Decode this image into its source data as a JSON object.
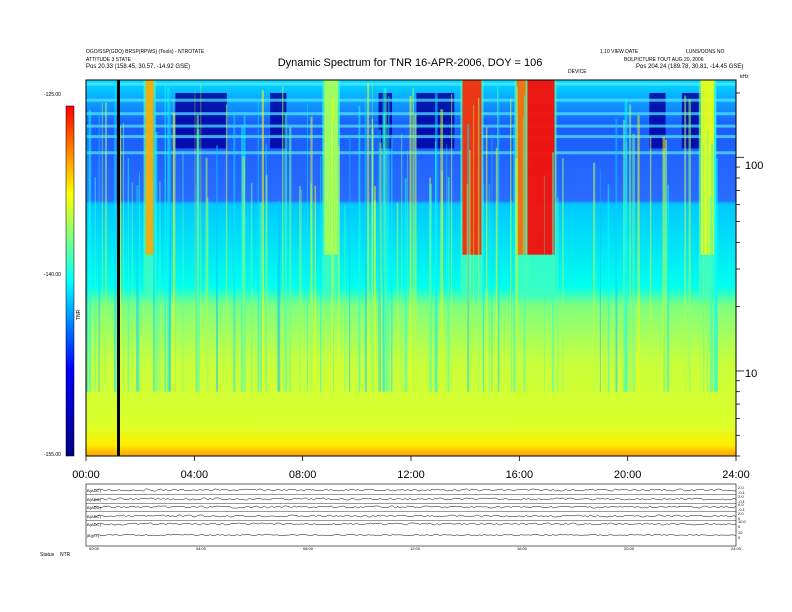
{
  "header": {
    "top_left_line1": "OGO/SSP(GDO) BRSP(RPWS) (Tools) - NTROTATE",
    "top_left_line2": "ATTITUDE 3 STATE",
    "top_left_line3": "Pos   20.33 (158.45, 30.57, -14.92 GSE)",
    "top_right_line1": "1.10 VIEW DATE",
    "top_right_line2": "LUNS/OONS NO",
    "top_right_line3": "BOLPICTURE  TOUT AUG 20, 2006",
    "top_right_line4": "Pos   204.24 (189.78, 30.81, -14.45 GSE)",
    "top_mid": "DEVICE",
    "khz": "kHz"
  },
  "colorbar": {
    "label": "TNR",
    "ticks": [
      "-125.00",
      "-140.00",
      "-155.00"
    ]
  },
  "chart_data": [
    {
      "type": "heatmap",
      "title": "Dynamic Spectrum for TNR 16-APR-2006, DOY = 106",
      "xlabel": "",
      "ylabel": "",
      "x_ticks": [
        "00:00",
        "04:00",
        "08:00",
        "12:00",
        "16:00",
        "20:00",
        "24:00"
      ],
      "x_range_hours": [
        0,
        24
      ],
      "y_scale": "log",
      "y_range_khz": [
        4,
        230
      ],
      "y_ticks": [
        "100",
        "10"
      ],
      "color_range_db": [
        -155,
        -125
      ],
      "colormap": [
        "#00007f",
        "#0000ff",
        "#00ffff",
        "#ffff00",
        "#ff0000"
      ],
      "marker_line_hour": 1.2,
      "bursts": [
        {
          "start_hour": 2.2,
          "end_hour": 2.5,
          "peak_db": -130
        },
        {
          "start_hour": 8.8,
          "end_hour": 9.3,
          "peak_db": -135
        },
        {
          "start_hour": 13.9,
          "end_hour": 14.6,
          "peak_db": -126
        },
        {
          "start_hour": 15.9,
          "end_hour": 16.3,
          "peak_db": -128
        },
        {
          "start_hour": 16.3,
          "end_hour": 17.3,
          "peak_db": -125
        },
        {
          "start_hour": 22.7,
          "end_hour": 23.2,
          "peak_db": -133
        }
      ]
    },
    {
      "type": "line",
      "title": "",
      "panels": [
        "B(ADC)",
        "B(ADC)",
        "B(ADC)",
        "B(ADC)",
        "B(ADC)",
        "|B|(nT)"
      ],
      "x_ticks": [
        "00:00",
        "04:00",
        "08:00",
        "12:00",
        "16:00",
        "20:00",
        "24:00"
      ],
      "x_range_hours": [
        0,
        24
      ],
      "right_ticks": [
        [
          "2.0",
          "-0.1"
        ],
        [
          "2.0",
          "-0.1"
        ],
        [
          "0.0",
          "-0.1"
        ],
        [
          "2.0",
          "0"
        ],
        [
          "10.0",
          "0"
        ],
        [
          "10",
          "0"
        ]
      ]
    }
  ],
  "footer": {
    "label": "Status",
    "value": "NTR"
  }
}
